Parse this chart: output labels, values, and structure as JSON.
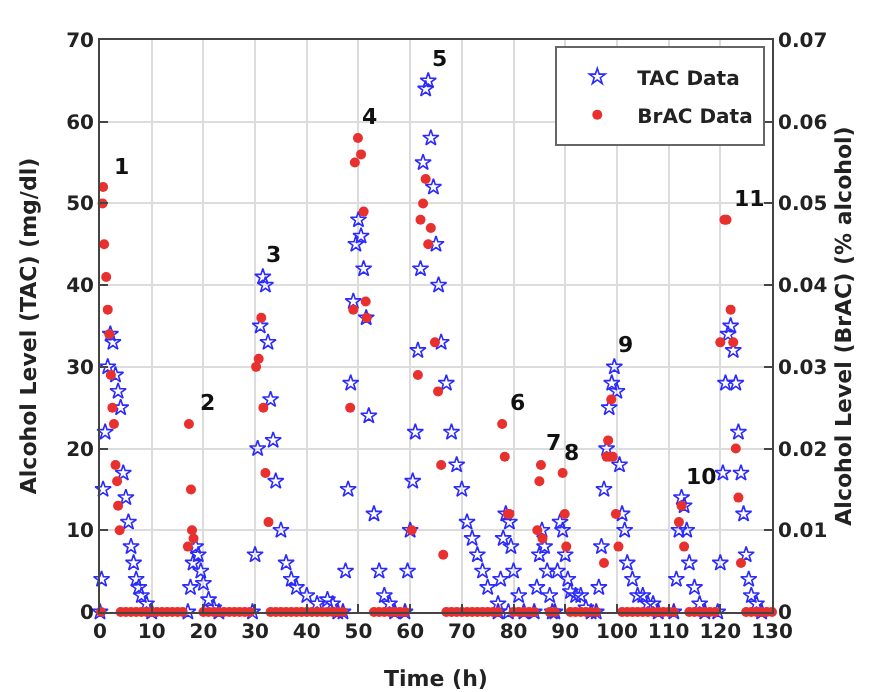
{
  "chart_data": {
    "type": "scatter",
    "xlabel": "Time (h)",
    "ylabel": "Alcohol Level (TAC) (mg/dl)",
    "y2label": "Alcohol Level (BrAC) (% alcohol)",
    "xlim": [
      0,
      130
    ],
    "xticks": [
      0,
      10,
      20,
      30,
      40,
      50,
      60,
      70,
      80,
      90,
      100,
      110,
      120,
      130
    ],
    "ylim": [
      0,
      70
    ],
    "yticks": [
      0,
      10,
      20,
      30,
      40,
      50,
      60,
      70
    ],
    "y2lim": [
      0,
      0.07
    ],
    "y2ticks": [
      0,
      0.01,
      0.02,
      0.03,
      0.04,
      0.05,
      0.06,
      0.07
    ],
    "grid": true,
    "legend": "top right",
    "series": [
      {
        "name": "TAC Data",
        "color": "#2b2bff",
        "marker": "star",
        "x": [
          0,
          0.3,
          0.6,
          1,
          1.5,
          2,
          2.5,
          3,
          3.5,
          4,
          4.5,
          5,
          5.5,
          6,
          6.5,
          7,
          7.5,
          8,
          9,
          10,
          17,
          17.5,
          18,
          18.5,
          19,
          19.5,
          20,
          21,
          22,
          23,
          29.5,
          30,
          30.5,
          31,
          31.5,
          32,
          32.5,
          33,
          33.5,
          34,
          35,
          36,
          37,
          38,
          40,
          42,
          44,
          45,
          46,
          47,
          47.5,
          48,
          48.5,
          49,
          49.5,
          50,
          50.5,
          51,
          51.5,
          52,
          53,
          54,
          55,
          56,
          57,
          59,
          59.5,
          60,
          60.5,
          61,
          61.5,
          62,
          62.5,
          63,
          63.5,
          64,
          64.5,
          65,
          65.5,
          66,
          67,
          68,
          69,
          70,
          71,
          72,
          73,
          74,
          75,
          77,
          79,
          77,
          77.5,
          78,
          78.5,
          79.2,
          79.5,
          80,
          81,
          82,
          84,
          84.5,
          85,
          85.5,
          86,
          86.5,
          87,
          87.5,
          88,
          88.5,
          89,
          89.5,
          90,
          90.5,
          91,
          92,
          93,
          94,
          95,
          96,
          96.5,
          97,
          97.5,
          98,
          98.5,
          99,
          99.5,
          100,
          100.5,
          101,
          101.5,
          102,
          103,
          104,
          105,
          106,
          107,
          108,
          111,
          111.5,
          112,
          112.5,
          113,
          113.5,
          114,
          115,
          116,
          117,
          119.5,
          120,
          120.5,
          121,
          121.5,
          122,
          122.5,
          123,
          123.5,
          124,
          124.5,
          125,
          125.5,
          126,
          127,
          128
        ],
        "values": [
          0,
          4,
          15,
          22,
          30,
          34,
          33,
          29,
          27,
          25,
          17,
          14,
          11,
          8,
          6,
          4,
          3,
          2,
          1,
          0,
          0,
          3,
          6,
          8,
          7,
          5,
          3.5,
          1.5,
          0.5,
          0,
          0,
          7,
          20,
          35,
          41,
          40,
          33,
          26,
          21,
          16,
          10,
          6,
          4,
          3,
          2,
          1,
          1.5,
          1,
          0,
          0,
          5,
          15,
          28,
          38,
          45,
          48,
          46,
          42,
          36,
          24,
          12,
          5,
          2,
          1,
          0,
          0,
          5,
          10,
          16,
          22,
          32,
          42,
          55,
          64,
          65,
          58,
          52,
          45,
          40,
          33,
          28,
          22,
          18,
          15,
          11,
          9,
          7,
          5,
          3,
          1,
          0,
          0,
          4,
          9,
          12,
          11,
          8,
          5,
          2,
          0,
          0,
          3,
          7,
          10,
          8,
          5,
          2,
          0,
          0,
          5,
          11,
          10,
          7,
          4,
          2.5,
          2,
          2,
          0.5,
          0,
          0,
          3,
          8,
          15,
          20,
          25,
          28,
          30,
          27,
          18,
          12,
          10,
          6,
          4,
          2,
          2,
          1,
          1,
          0,
          0,
          4,
          10,
          14,
          13,
          10,
          6,
          3,
          1,
          0,
          0,
          6,
          17,
          28,
          34,
          35,
          32,
          28,
          22,
          17,
          12,
          7,
          4,
          2,
          1,
          0
        ]
      },
      {
        "name": "BrAC Data",
        "color": "#e8302e",
        "marker": "circle",
        "axis": "y2",
        "x": [
          0.2,
          0.5,
          0.6,
          0.8,
          1.2,
          1.5,
          1.8,
          2.1,
          2.4,
          2.7,
          3.0,
          3.3,
          3.5,
          3.8,
          4,
          5,
          6,
          7,
          8,
          9,
          10,
          11,
          12,
          13,
          14,
          15,
          16,
          17,
          17.2,
          17.6,
          17.8,
          18.1,
          20,
          21,
          22,
          23,
          24,
          25,
          26,
          27,
          28,
          29,
          30.2,
          30.7,
          31.2,
          31.6,
          32,
          32.6,
          33,
          34,
          35,
          36,
          37,
          38,
          39,
          40,
          41,
          42,
          43,
          44,
          45,
          46,
          47,
          48.4,
          49,
          49.3,
          49.9,
          50.5,
          51,
          51.4,
          51.6,
          53,
          54,
          55,
          56,
          57,
          58,
          59,
          60.3,
          61.5,
          62,
          62.5,
          63,
          63.5,
          64,
          64.8,
          65.4,
          66,
          66.4,
          67,
          68,
          69,
          70,
          71,
          72,
          73,
          74,
          75,
          76,
          77,
          77.8,
          78.3,
          78.9,
          79.2,
          80,
          81,
          82,
          83,
          84,
          84.6,
          85,
          85.3,
          85.6,
          87,
          88,
          89.5,
          89.9,
          90.2,
          91,
          92,
          93,
          94,
          95,
          96,
          97.5,
          98,
          98.3,
          98.6,
          98.9,
          99.2,
          99.8,
          100.3,
          101,
          102,
          103,
          104,
          105,
          106,
          107,
          108,
          109,
          110,
          111,
          112,
          112.5,
          113,
          114,
          115,
          116,
          117,
          118,
          119,
          120,
          120.8,
          121.2,
          122,
          122.5,
          123,
          123.5,
          124,
          125,
          126,
          127,
          128,
          129,
          130
        ],
        "values": [
          0,
          0.05,
          0.052,
          0.045,
          0.041,
          0.037,
          0.034,
          0.029,
          0.025,
          0.023,
          0.018,
          0.016,
          0.013,
          0.01,
          0,
          0,
          0,
          0,
          0,
          0,
          0,
          0,
          0,
          0,
          0,
          0,
          0,
          0.008,
          0.023,
          0.015,
          0.01,
          0.009,
          0,
          0,
          0,
          0,
          0,
          0,
          0,
          0,
          0,
          0,
          0.03,
          0.031,
          0.036,
          0.025,
          0.017,
          0.011,
          0,
          0,
          0,
          0,
          0,
          0,
          0,
          0,
          0,
          0,
          0,
          0,
          0,
          0,
          0,
          0.025,
          0.037,
          0.055,
          0.058,
          0.056,
          0.049,
          0.038,
          0.036,
          0,
          0,
          0,
          0,
          0,
          0,
          0,
          0.01,
          0.029,
          0.048,
          0.05,
          0.053,
          0.045,
          0.047,
          0.033,
          0.027,
          0.018,
          0.007,
          0,
          0,
          0,
          0,
          0,
          0,
          0,
          0,
          0,
          0,
          0,
          0.023,
          0.019,
          0.012,
          0.012,
          0,
          0,
          0,
          0,
          0,
          0.01,
          0.016,
          0.018,
          0.009,
          0,
          0,
          0.017,
          0.012,
          0.008,
          0,
          0,
          0,
          0,
          0,
          0,
          0.006,
          0.019,
          0.021,
          0.019,
          0.026,
          0.019,
          0.012,
          0.008,
          0,
          0,
          0,
          0,
          0,
          0,
          0,
          0,
          0,
          0,
          0,
          0.011,
          0.013,
          0.008,
          0,
          0,
          0,
          0,
          0,
          0,
          0.033,
          0.048,
          0.048,
          0.037,
          0.033,
          0.02,
          0.014,
          0.006,
          0,
          0,
          0,
          0,
          0,
          0
        ]
      }
    ],
    "annotations": [
      "1",
      "2",
      "3",
      "4",
      "5",
      "6",
      "7",
      "8",
      "9",
      "10",
      "11"
    ]
  }
}
